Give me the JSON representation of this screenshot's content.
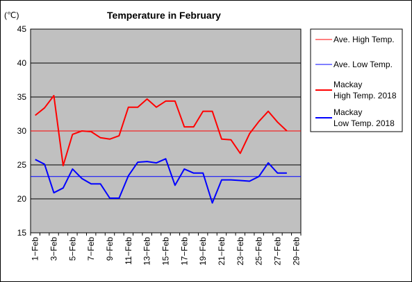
{
  "chart_data": {
    "type": "line",
    "title": "Temperature in February",
    "unit_label": "(℃)",
    "ylim": [
      15,
      45
    ],
    "y_ticks": [
      "45",
      "40",
      "35",
      "30",
      "25",
      "20",
      "15"
    ],
    "x_tick_labels": [
      "1−Feb",
      "3−Feb",
      "5−Feb",
      "7−Feb",
      "9−Feb",
      "11−Feb",
      "13−Feb",
      "15−Feb",
      "17−Feb",
      "19−Feb",
      "21−Feb",
      "23−Feb",
      "25−Feb",
      "27−Feb",
      "29−Feb"
    ],
    "days": 29,
    "grid": true,
    "legend_position": "right",
    "series": [
      {
        "name": "Ave. High Temp.",
        "color": "#ff0000",
        "width": 1,
        "kind": "constant",
        "value": 30.0
      },
      {
        "name": "Ave. Low Temp.",
        "color": "#0000ff",
        "width": 1,
        "kind": "constant",
        "value": 23.3
      },
      {
        "name": "Mackay\nHigh Temp. 2018",
        "color": "#ff0000",
        "width": 2,
        "kind": "daily",
        "values": [
          32.3,
          33.4,
          35.2,
          24.9,
          29.5,
          30.0,
          29.9,
          29.0,
          28.8,
          29.3,
          33.5,
          33.5,
          34.7,
          33.5,
          34.4,
          34.4,
          30.6,
          30.6,
          32.9,
          32.9,
          28.8,
          28.7,
          26.7,
          29.6,
          31.4,
          32.9,
          31.3,
          30.0
        ]
      },
      {
        "name": "Mackay\nLow Temp. 2018",
        "color": "#0000ff",
        "width": 2,
        "kind": "daily",
        "values": [
          25.8,
          25.1,
          20.9,
          21.6,
          24.4,
          23.0,
          22.2,
          22.2,
          20.1,
          20.1,
          23.4,
          25.4,
          25.5,
          25.3,
          25.9,
          22.0,
          24.4,
          23.8,
          23.8,
          19.4,
          22.8,
          22.8,
          22.7,
          22.6,
          23.3,
          25.3,
          23.8,
          23.8
        ]
      }
    ]
  }
}
